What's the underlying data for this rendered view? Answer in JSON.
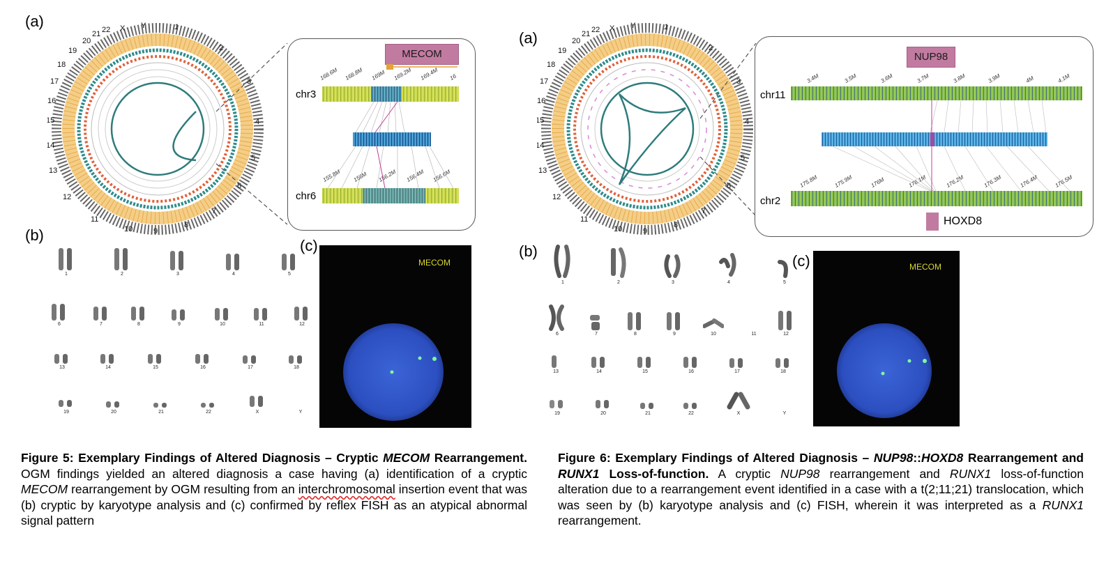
{
  "fig5": {
    "panel_a": "(a)",
    "panel_b": "(b)",
    "panel_c": "(c)",
    "gene": "MECOM",
    "chr_top": "chr3",
    "chr_bottom": "chr6",
    "ticks_top": [
      "168.6M",
      "168.8M",
      "169M",
      "169.2M",
      "169.4M",
      "16"
    ],
    "ticks_bottom": [
      "155.8M",
      "156M",
      "156.2M",
      "156.4M",
      "156.6M"
    ],
    "circos_labels": [
      "X",
      "Y",
      "1",
      "2",
      "3",
      "4",
      "5",
      "6",
      "7",
      "8",
      "9",
      "10",
      "11",
      "12",
      "13",
      "14",
      "15",
      "16",
      "17",
      "18",
      "19",
      "20",
      "21",
      "22"
    ],
    "fish_label": "MECOM",
    "karyotype": [
      "1",
      "2",
      "3",
      "4",
      "5",
      "6",
      "7",
      "8",
      "9",
      "10",
      "11",
      "12",
      "13",
      "14",
      "15",
      "16",
      "17",
      "18",
      "19",
      "20",
      "21",
      "22",
      "X",
      "Y"
    ],
    "caption": {
      "bold1": "Figure 5: Exemplary Findings of Altered Diagnosis – Cryptic ",
      "bold_it1": "MECOM",
      "bold2": " Rearrangement.",
      "t1": " OGM findings yielded an altered diagnosis a case having (a) identification of a cryptic ",
      "it1": "MECOM",
      "t2": " rearrangement by OGM resulting from an ",
      "squig": "interchromosomal",
      "t3": " insertion event that was (b) cryptic by karyotype analysis and (c) confirmed by reflex FISH as an atypical abnormal signal pattern"
    }
  },
  "fig6": {
    "panel_a": "(a)",
    "panel_b": "(b)",
    "panel_c": "(c)",
    "gene_top": "NUP98",
    "gene_bottom": "HOXD8",
    "chr_top": "chr11",
    "chr_bottom": "chr2",
    "ticks_top": [
      "3.4M",
      "3.5M",
      "3.6M",
      "3.7M",
      "3.8M",
      "3.9M",
      "4M",
      "4.1M"
    ],
    "ticks_bottom": [
      "175.8M",
      "175.9M",
      "176M",
      "176.1M",
      "176.2M",
      "176.3M",
      "176.4M",
      "176.5M"
    ],
    "circos_labels": [
      "X",
      "Y",
      "1",
      "2",
      "3",
      "4",
      "5",
      "6",
      "7",
      "8",
      "9",
      "10",
      "11",
      "12",
      "13",
      "14",
      "15",
      "16",
      "17",
      "18",
      "19",
      "20",
      "21",
      "22"
    ],
    "fish_label": "MECOM",
    "karyotype": [
      "1",
      "2",
      "3",
      "4",
      "5",
      "6",
      "7",
      "8",
      "9",
      "10",
      "11",
      "12",
      "13",
      "14",
      "15",
      "16",
      "17",
      "18",
      "19",
      "20",
      "21",
      "22",
      "X",
      "Y"
    ],
    "caption": {
      "bold1": "Figure 6: Exemplary Findings of Altered Diagnosis – ",
      "bold_it1": "NUP98",
      "bold2": "::",
      "bold_it2": "HOXD8",
      "bold3": " Rearrangement and ",
      "bold_it3": "RUNX1",
      "bold4": " Loss-of-function.",
      "t1": " A cryptic ",
      "it1": "NUP98",
      "t2": " rearrangement and ",
      "it2": "RUNX1",
      "t3": " loss-of-function alteration due to a rearrangement event identified in a case with a t(2;11;21) translocation, which was seen by (b) karyotype analysis and (c) FISH, wherein it was interpreted as a ",
      "it3": "RUNX1",
      "t4": " rearrangement."
    }
  }
}
